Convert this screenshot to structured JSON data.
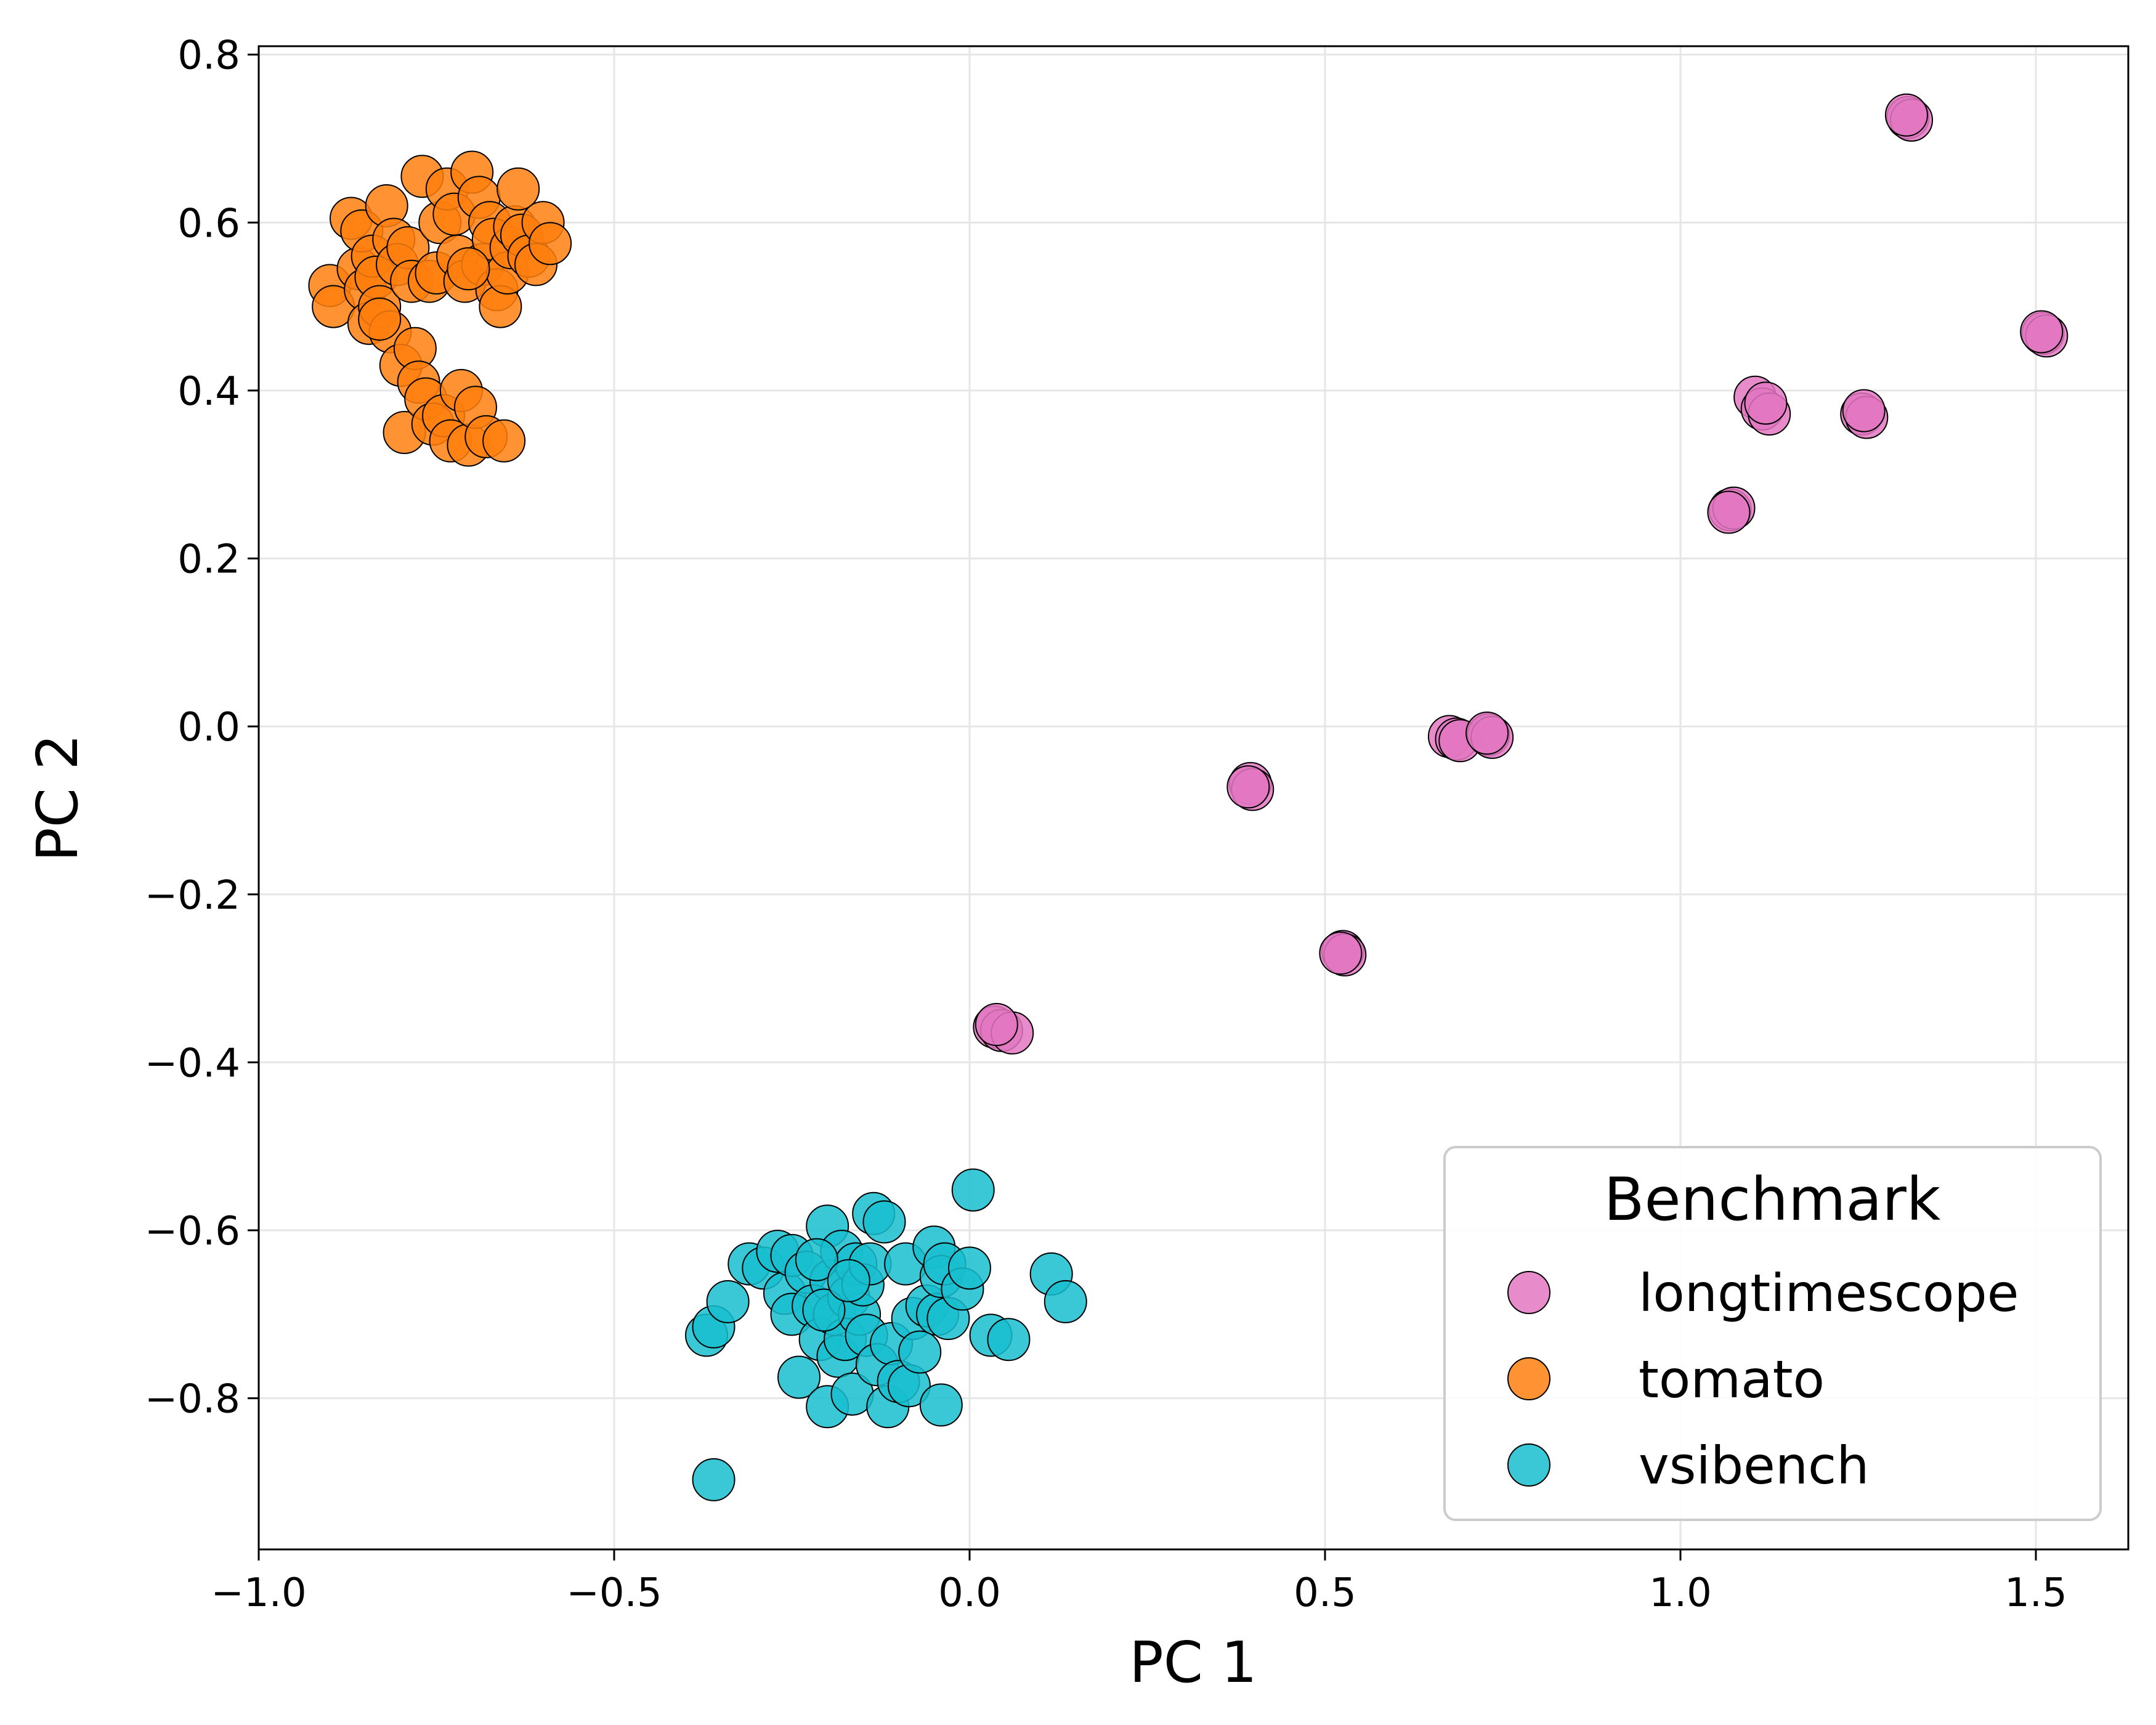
{
  "chart_data": {
    "type": "scatter",
    "title": "",
    "xlabel": "PC 1",
    "ylabel": "PC 2",
    "xlim": [
      -1.0,
      1.63
    ],
    "ylim": [
      -0.98,
      0.81
    ],
    "xticks": [
      -1.0,
      -0.5,
      0.0,
      0.5,
      1.0,
      1.5
    ],
    "xtick_labels": [
      "−1.0",
      "−0.5",
      "0.0",
      "0.5",
      "1.0",
      "1.5"
    ],
    "yticks": [
      -0.8,
      -0.6,
      -0.4,
      -0.2,
      0.0,
      0.2,
      0.4,
      0.6,
      0.8
    ],
    "ytick_labels": [
      "−0.8",
      "−0.6",
      "−0.4",
      "−0.2",
      "0.0",
      "0.2",
      "0.4",
      "0.6",
      "0.8"
    ],
    "grid": true,
    "legend": {
      "title": "Benchmark",
      "position": "lower-right"
    },
    "series": [
      {
        "name": "longtimescope",
        "color": "#e377c2",
        "points": [
          [
            1.32,
            0.725
          ],
          [
            1.325,
            0.722
          ],
          [
            1.318,
            0.728
          ],
          [
            1.51,
            0.468
          ],
          [
            1.515,
            0.465
          ],
          [
            1.508,
            0.47
          ],
          [
            1.105,
            0.392
          ],
          [
            1.115,
            0.378
          ],
          [
            1.125,
            0.372
          ],
          [
            1.12,
            0.385
          ],
          [
            1.255,
            0.372
          ],
          [
            1.262,
            0.368
          ],
          [
            1.258,
            0.376
          ],
          [
            1.07,
            0.258
          ],
          [
            1.075,
            0.26
          ],
          [
            1.068,
            0.255
          ],
          [
            0.675,
            -0.012
          ],
          [
            0.685,
            -0.015
          ],
          [
            0.69,
            -0.017
          ],
          [
            0.73,
            -0.01
          ],
          [
            0.735,
            -0.013
          ],
          [
            0.728,
            -0.008
          ],
          [
            0.395,
            -0.068
          ],
          [
            0.398,
            -0.075
          ],
          [
            0.392,
            -0.072
          ],
          [
            0.525,
            -0.268
          ],
          [
            0.528,
            -0.272
          ],
          [
            0.522,
            -0.27
          ],
          [
            0.035,
            -0.358
          ],
          [
            0.045,
            -0.362
          ],
          [
            0.06,
            -0.365
          ],
          [
            0.038,
            -0.355
          ]
        ]
      },
      {
        "name": "tomato",
        "color": "#ff7f0e",
        "points": [
          [
            -0.9,
            0.525
          ],
          [
            -0.895,
            0.5
          ],
          [
            -0.87,
            0.605
          ],
          [
            -0.86,
            0.545
          ],
          [
            -0.855,
            0.59
          ],
          [
            -0.85,
            0.52
          ],
          [
            -0.845,
            0.48
          ],
          [
            -0.84,
            0.56
          ],
          [
            -0.835,
            0.535
          ],
          [
            -0.83,
            0.5
          ],
          [
            -0.82,
            0.62
          ],
          [
            -0.815,
            0.47
          ],
          [
            -0.81,
            0.58
          ],
          [
            -0.805,
            0.55
          ],
          [
            -0.8,
            0.43
          ],
          [
            -0.795,
            0.35
          ],
          [
            -0.79,
            0.57
          ],
          [
            -0.785,
            0.53
          ],
          [
            -0.78,
            0.45
          ],
          [
            -0.775,
            0.41
          ],
          [
            -0.77,
            0.655
          ],
          [
            -0.765,
            0.39
          ],
          [
            -0.76,
            0.53
          ],
          [
            -0.755,
            0.36
          ],
          [
            -0.75,
            0.54
          ],
          [
            -0.745,
            0.6
          ],
          [
            -0.74,
            0.37
          ],
          [
            -0.735,
            0.64
          ],
          [
            -0.73,
            0.34
          ],
          [
            -0.725,
            0.61
          ],
          [
            -0.72,
            0.56
          ],
          [
            -0.715,
            0.4
          ],
          [
            -0.71,
            0.53
          ],
          [
            -0.705,
            0.335
          ],
          [
            -0.7,
            0.66
          ],
          [
            -0.695,
            0.38
          ],
          [
            -0.69,
            0.63
          ],
          [
            -0.685,
            0.55
          ],
          [
            -0.68,
            0.345
          ],
          [
            -0.675,
            0.6
          ],
          [
            -0.67,
            0.58
          ],
          [
            -0.665,
            0.52
          ],
          [
            -0.66,
            0.5
          ],
          [
            -0.655,
            0.34
          ],
          [
            -0.65,
            0.54
          ],
          [
            -0.645,
            0.57
          ],
          [
            -0.64,
            0.595
          ],
          [
            -0.635,
            0.64
          ],
          [
            -0.63,
            0.585
          ],
          [
            -0.62,
            0.56
          ],
          [
            -0.61,
            0.55
          ],
          [
            -0.6,
            0.6
          ],
          [
            -0.59,
            0.575
          ],
          [
            -0.83,
            0.485
          ],
          [
            -0.705,
            0.545
          ]
        ]
      },
      {
        "name": "vsibench",
        "color": "#17becf",
        "points": [
          [
            0.005,
            -0.552
          ],
          [
            -0.37,
            -0.725
          ],
          [
            -0.36,
            -0.715
          ],
          [
            -0.34,
            -0.685
          ],
          [
            -0.36,
            -0.897
          ],
          [
            -0.31,
            -0.64
          ],
          [
            -0.29,
            -0.645
          ],
          [
            -0.27,
            -0.625
          ],
          [
            -0.26,
            -0.675
          ],
          [
            -0.25,
            -0.7
          ],
          [
            -0.25,
            -0.63
          ],
          [
            -0.24,
            -0.775
          ],
          [
            -0.23,
            -0.65
          ],
          [
            -0.22,
            -0.69
          ],
          [
            -0.21,
            -0.73
          ],
          [
            -0.2,
            -0.595
          ],
          [
            -0.2,
            -0.81
          ],
          [
            -0.195,
            -0.66
          ],
          [
            -0.19,
            -0.7
          ],
          [
            -0.185,
            -0.75
          ],
          [
            -0.18,
            -0.625
          ],
          [
            -0.175,
            -0.73
          ],
          [
            -0.17,
            -0.68
          ],
          [
            -0.165,
            -0.795
          ],
          [
            -0.16,
            -0.64
          ],
          [
            -0.155,
            -0.7
          ],
          [
            -0.15,
            -0.665
          ],
          [
            -0.145,
            -0.725
          ],
          [
            -0.14,
            -0.64
          ],
          [
            -0.135,
            -0.58
          ],
          [
            -0.13,
            -0.76
          ],
          [
            -0.12,
            -0.59
          ],
          [
            -0.115,
            -0.81
          ],
          [
            -0.11,
            -0.735
          ],
          [
            -0.1,
            -0.78
          ],
          [
            -0.09,
            -0.64
          ],
          [
            -0.085,
            -0.785
          ],
          [
            -0.08,
            -0.705
          ],
          [
            -0.07,
            -0.745
          ],
          [
            -0.06,
            -0.69
          ],
          [
            -0.05,
            -0.62
          ],
          [
            -0.045,
            -0.7
          ],
          [
            -0.04,
            -0.655
          ],
          [
            -0.04,
            -0.808
          ],
          [
            -0.035,
            -0.64
          ],
          [
            -0.03,
            -0.705
          ],
          [
            -0.01,
            -0.67
          ],
          [
            0.0,
            -0.645
          ],
          [
            0.03,
            -0.725
          ],
          [
            0.055,
            -0.73
          ],
          [
            0.115,
            -0.652
          ],
          [
            0.135,
            -0.685
          ],
          [
            -0.215,
            -0.635
          ],
          [
            -0.205,
            -0.695
          ],
          [
            -0.17,
            -0.66
          ]
        ]
      }
    ]
  }
}
